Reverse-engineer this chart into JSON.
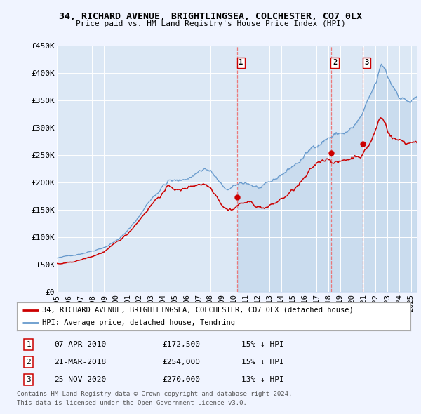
{
  "title1": "34, RICHARD AVENUE, BRIGHTLINGSEA, COLCHESTER, CO7 0LX",
  "title2": "Price paid vs. HM Land Registry's House Price Index (HPI)",
  "bg_color": "#f0f4ff",
  "plot_bg": "#dce8f5",
  "red_line_label": "34, RICHARD AVENUE, BRIGHTLINGSEA, COLCHESTER, CO7 0LX (detached house)",
  "blue_line_label": "HPI: Average price, detached house, Tendring",
  "transactions": [
    {
      "num": 1,
      "date": "07-APR-2010",
      "x": 2010.27,
      "price": 172500,
      "pct": "15% ↓ HPI"
    },
    {
      "num": 2,
      "date": "21-MAR-2018",
      "x": 2018.22,
      "price": 254000,
      "pct": "15% ↓ HPI"
    },
    {
      "num": 3,
      "date": "25-NOV-2020",
      "x": 2020.9,
      "price": 270000,
      "pct": "13% ↓ HPI"
    }
  ],
  "footnote1": "Contains HM Land Registry data © Crown copyright and database right 2024.",
  "footnote2": "This data is licensed under the Open Government Licence v3.0.",
  "xmin": 1995.0,
  "xmax": 2025.5,
  "ymin": 0,
  "ymax": 450000,
  "yticks": [
    0,
    50000,
    100000,
    150000,
    200000,
    250000,
    300000,
    350000,
    400000,
    450000
  ],
  "ytick_labels": [
    "£0",
    "£50K",
    "£100K",
    "£150K",
    "£200K",
    "£250K",
    "£300K",
    "£350K",
    "£400K",
    "£450K"
  ],
  "xticks": [
    1995,
    1996,
    1997,
    1998,
    1999,
    2000,
    2001,
    2002,
    2003,
    2004,
    2005,
    2006,
    2007,
    2008,
    2009,
    2010,
    2011,
    2012,
    2013,
    2014,
    2015,
    2016,
    2017,
    2018,
    2019,
    2020,
    2021,
    2022,
    2023,
    2024,
    2025
  ],
  "red_color": "#cc0000",
  "blue_color": "#6699cc",
  "vline_color": "#ee6666"
}
